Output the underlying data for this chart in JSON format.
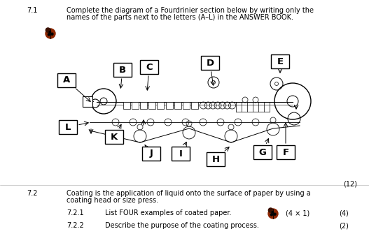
{
  "bg_color": "#ffffff",
  "q71_number": "7.1",
  "q71_text_line1": "Complete the diagram of a Fourdrinier section below by writing only the",
  "q71_text_line2": "names of the parts next to the letters (A–L) in the ANSWER BOOK.",
  "q72_number": "7.2",
  "q72_text_line1": "Coating is the application of liquid onto the surface of paper by using a",
  "q72_text_line2": "coating head or size press.",
  "q721_number": "7.2.1",
  "q721_text": "List FOUR examples of coated paper.",
  "q721_marks": "(4 × 1)",
  "q721_total": "(4)",
  "q722_number": "7.2.2",
  "q722_text": "Describe the purpose of the coating process.",
  "q722_total": "(2)",
  "q71_total": "(12)",
  "font_size_main": 7.0,
  "font_size_label": 9.5,
  "label_font_weight": "bold"
}
